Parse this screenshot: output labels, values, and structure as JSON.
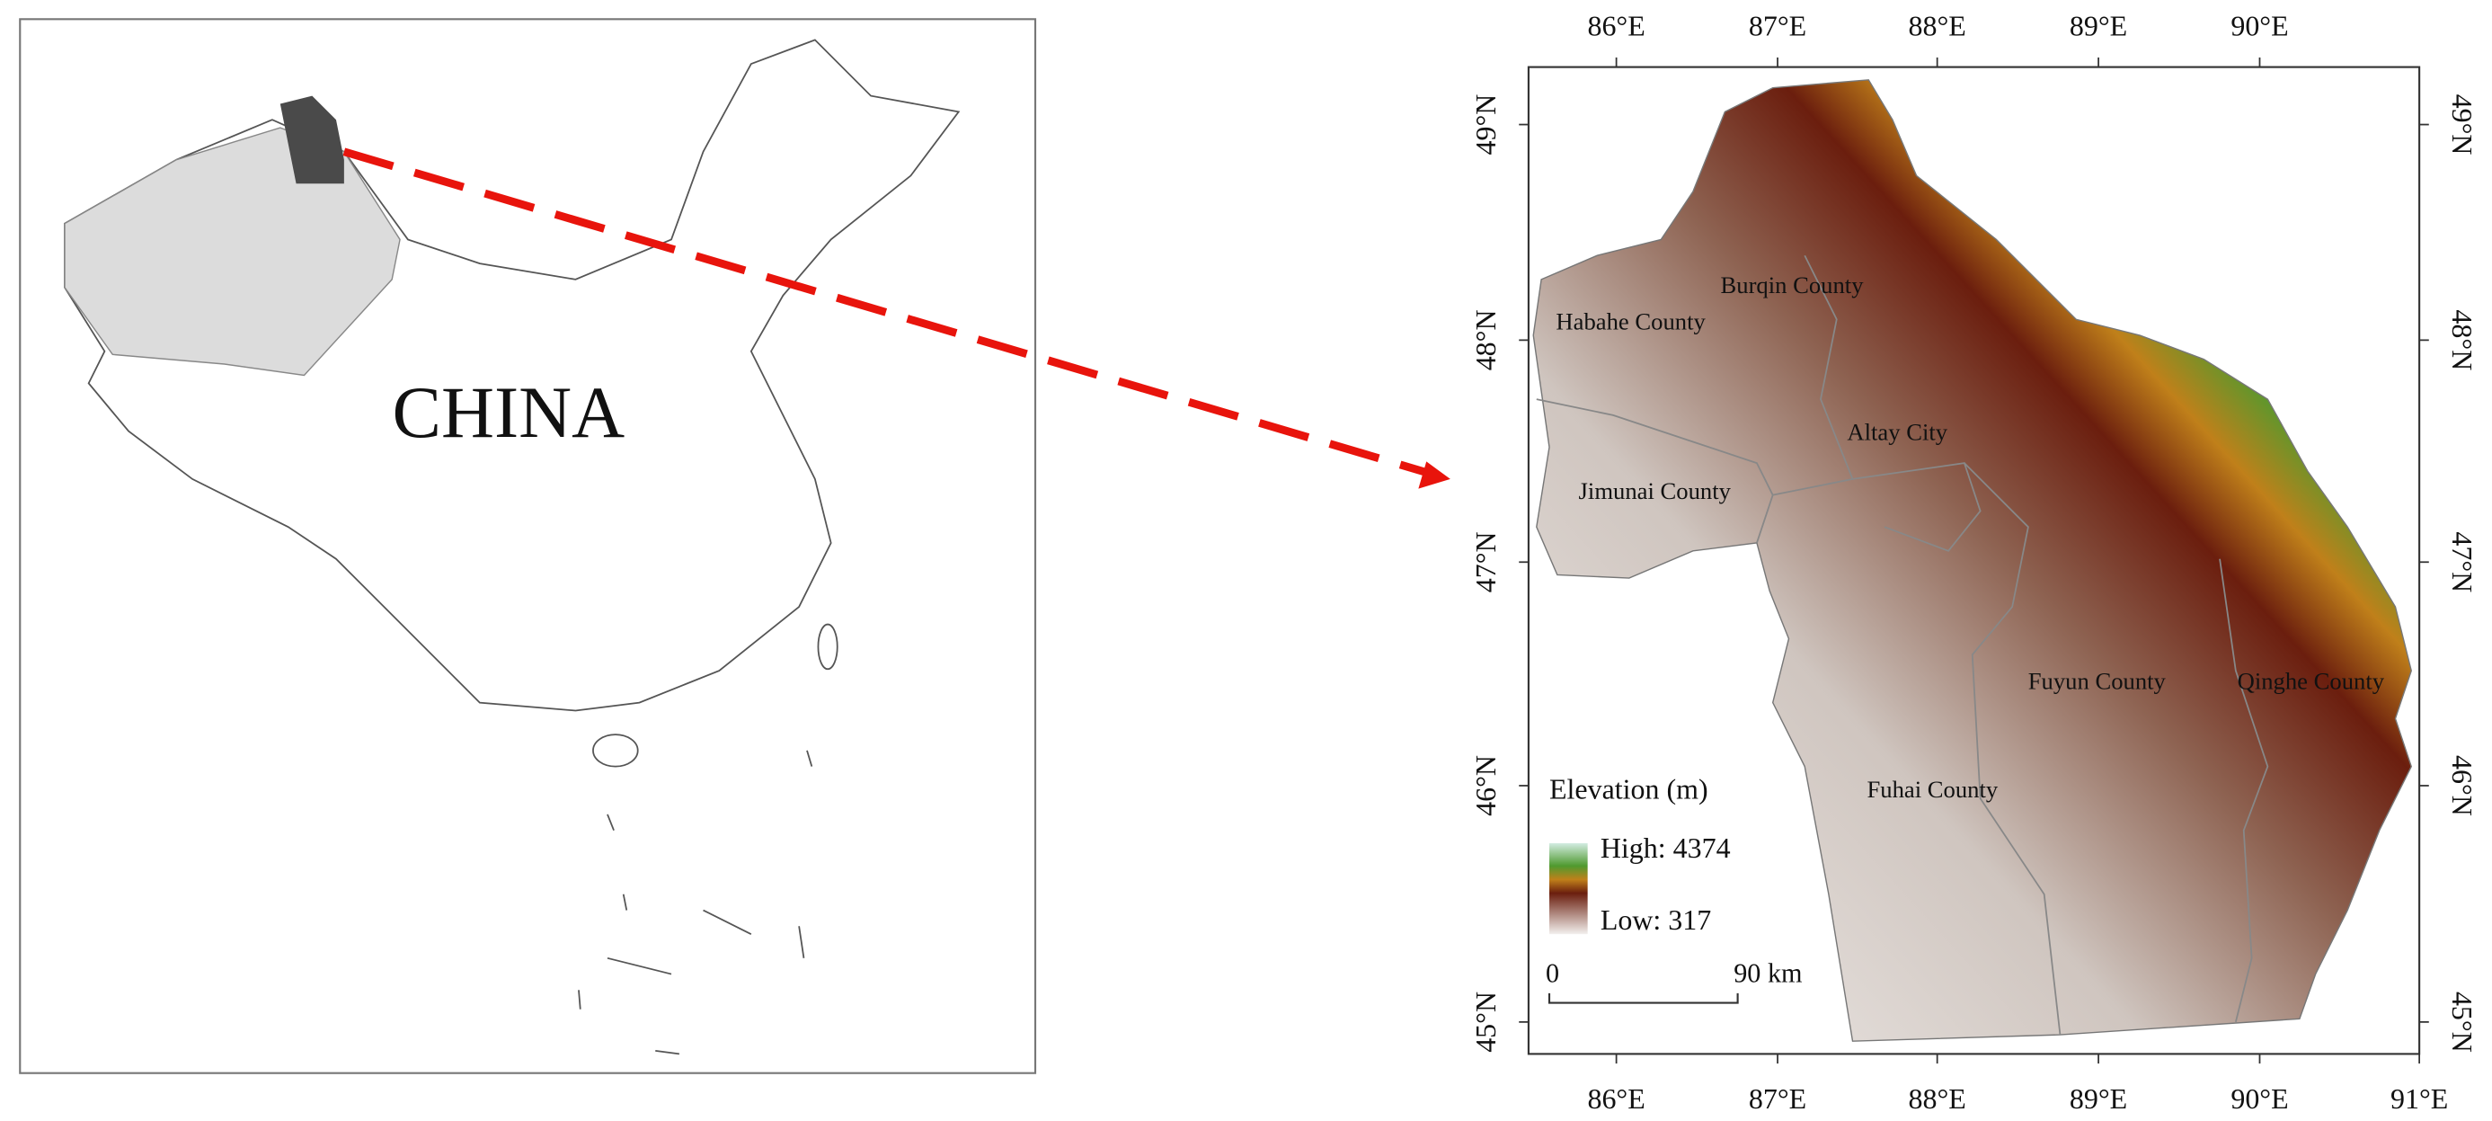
{
  "left_panel": {
    "label": "CHINA"
  },
  "right_panel": {
    "longitude_labels": [
      "86°E",
      "87°E",
      "88°E",
      "89°E",
      "90°E",
      "91°E"
    ],
    "latitude_labels": [
      "49°N",
      "48°N",
      "47°N",
      "46°N",
      "45°N"
    ],
    "place_labels": [
      "Burqin County",
      "Habahe County",
      "Altay City",
      "Jimunai County",
      "Fuyun County",
      "Qinghe County",
      "Fuhai County"
    ],
    "legend": {
      "title": "Elevation (m)",
      "high": "High: 4374",
      "low": "Low: 317"
    },
    "scale_bar": {
      "start": "0",
      "end": "90 km"
    }
  }
}
